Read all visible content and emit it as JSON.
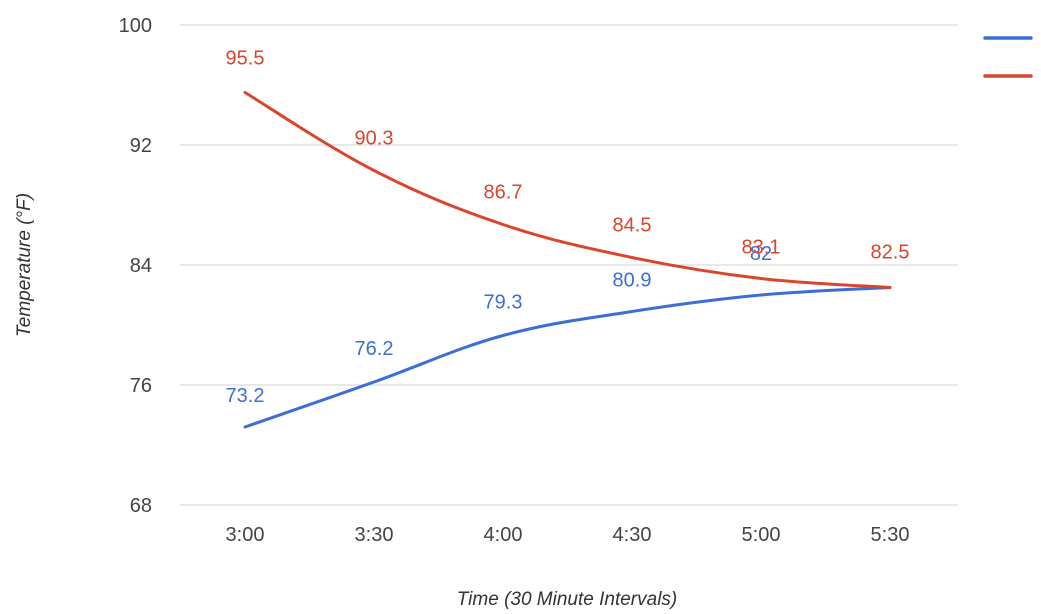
{
  "chart_data": {
    "type": "line",
    "title": "",
    "xlabel": "Time (30 Minute Intervals)",
    "ylabel": "Temperature (°F)",
    "categories": [
      "3:00",
      "3:30",
      "4:00",
      "4:30",
      "5:00",
      "5:30"
    ],
    "ylim": [
      68,
      100
    ],
    "yticks": [
      68,
      76,
      84,
      92,
      100
    ],
    "grid": true,
    "legend_position": "top-right",
    "series": [
      {
        "values": [
          73.2,
          76.2,
          79.3,
          80.9,
          82,
          82.5
        ],
        "labels": [
          "73.2",
          "76.2",
          "79.3",
          "80.9",
          "82",
          ""
        ],
        "color": "#3b6fd6"
      },
      {
        "values": [
          95.5,
          90.3,
          86.7,
          84.5,
          83.1,
          82.5
        ],
        "labels": [
          "95.5",
          "90.3",
          "86.7",
          "84.5",
          "83.1",
          "82.5"
        ],
        "color": "#d9462b"
      }
    ]
  }
}
